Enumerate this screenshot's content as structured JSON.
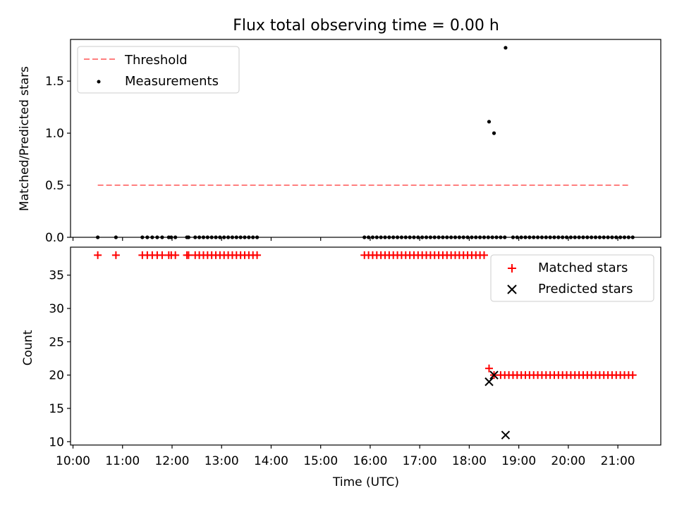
{
  "figure": {
    "title": "Flux total observing time = 0.00 h",
    "xlabel": "Time (UTC)"
  },
  "chart_data": [
    {
      "type": "scatter",
      "ylabel": "Matched/Predicted stars",
      "xlim": [
        "09:57",
        "21:52"
      ],
      "ylim": [
        0,
        1.9
      ],
      "yticks": [
        0.0,
        0.5,
        1.0,
        1.5
      ],
      "ytick_labels": [
        "0.0",
        "0.5",
        "1.0",
        "1.5"
      ],
      "legend_position": "upper-left",
      "series": [
        {
          "name": "Threshold",
          "kind": "dashed-line",
          "color": "#ff7f7f",
          "x": [
            "10:30",
            "21:15"
          ],
          "y": [
            0.5,
            0.5
          ]
        },
        {
          "name": "Measurements",
          "kind": "dots",
          "color": "#000000",
          "x": [
            "10:30",
            "10:52",
            "11:24",
            "11:30",
            "11:36",
            "11:42",
            "11:48",
            "11:56",
            "11:59",
            "12:04",
            "12:18",
            "12:20",
            "12:28",
            "12:33",
            "12:38",
            "12:43",
            "12:48",
            "12:53",
            "12:58",
            "13:03",
            "13:08",
            "13:13",
            "13:18",
            "13:23",
            "13:28",
            "13:33",
            "13:38",
            "13:43",
            "15:53",
            "15:58",
            "16:03",
            "16:08",
            "16:13",
            "16:18",
            "16:23",
            "16:28",
            "16:33",
            "16:38",
            "16:43",
            "16:48",
            "16:53",
            "16:58",
            "17:03",
            "17:08",
            "17:13",
            "17:18",
            "17:23",
            "17:28",
            "17:33",
            "17:38",
            "17:43",
            "17:48",
            "17:53",
            "17:58",
            "18:03",
            "18:08",
            "18:13",
            "18:18",
            "18:23",
            "18:28",
            "18:33",
            "18:38",
            "18:43",
            "18:53",
            "18:58",
            "19:03",
            "19:08",
            "19:13",
            "19:18",
            "19:23",
            "19:28",
            "19:33",
            "19:38",
            "19:43",
            "19:48",
            "19:53",
            "19:58",
            "20:03",
            "20:08",
            "20:13",
            "20:18",
            "20:23",
            "20:28",
            "20:33",
            "20:38",
            "20:43",
            "20:48",
            "20:53",
            "20:58",
            "21:03",
            "21:08",
            "21:13",
            "21:18",
            "18:24",
            "18:30",
            "18:44"
          ],
          "y": [
            0,
            0,
            0,
            0,
            0,
            0,
            0,
            0,
            0,
            0,
            0,
            0,
            0,
            0,
            0,
            0,
            0,
            0,
            0,
            0,
            0,
            0,
            0,
            0,
            0,
            0,
            0,
            0,
            0,
            0,
            0,
            0,
            0,
            0,
            0,
            0,
            0,
            0,
            0,
            0,
            0,
            0,
            0,
            0,
            0,
            0,
            0,
            0,
            0,
            0,
            0,
            0,
            0,
            0,
            0,
            0,
            0,
            0,
            0,
            0,
            0,
            0,
            0,
            0,
            0,
            0,
            0,
            0,
            0,
            0,
            0,
            0,
            0,
            0,
            0,
            0,
            0,
            0,
            0,
            0,
            0,
            0,
            0,
            0,
            0,
            0,
            0,
            0,
            0,
            0,
            0,
            0,
            0,
            1.11,
            1.0,
            1.82
          ]
        }
      ]
    },
    {
      "type": "scatter",
      "ylabel": "Count",
      "xlim": [
        "09:57",
        "21:52"
      ],
      "ylim": [
        9.5,
        39.2
      ],
      "yticks": [
        10,
        15,
        20,
        25,
        30,
        35
      ],
      "ytick_labels": [
        "10",
        "15",
        "20",
        "25",
        "30",
        "35"
      ],
      "xtick_labels": [
        "10:00",
        "11:00",
        "12:00",
        "13:00",
        "14:00",
        "15:00",
        "16:00",
        "17:00",
        "18:00",
        "19:00",
        "20:00",
        "21:00"
      ],
      "legend_position": "upper-right",
      "series": [
        {
          "name": "Matched stars",
          "kind": "plus",
          "color": "#ff0000",
          "x": [
            "10:30",
            "10:52",
            "11:24",
            "11:30",
            "11:36",
            "11:42",
            "11:48",
            "11:56",
            "11:59",
            "12:04",
            "12:18",
            "12:20",
            "12:28",
            "12:33",
            "12:38",
            "12:43",
            "12:48",
            "12:53",
            "12:58",
            "13:03",
            "13:08",
            "13:13",
            "13:18",
            "13:23",
            "13:28",
            "13:33",
            "13:38",
            "13:43",
            "15:53",
            "15:58",
            "16:03",
            "16:08",
            "16:13",
            "16:18",
            "16:23",
            "16:28",
            "16:33",
            "16:38",
            "16:43",
            "16:48",
            "16:53",
            "16:58",
            "17:03",
            "17:08",
            "17:13",
            "17:18",
            "17:23",
            "17:28",
            "17:33",
            "17:38",
            "17:43",
            "17:48",
            "17:53",
            "17:58",
            "18:03",
            "18:08",
            "18:13",
            "18:18",
            "18:24",
            "18:30",
            "18:38",
            "18:43",
            "18:48",
            "18:53",
            "18:58",
            "19:03",
            "19:08",
            "19:13",
            "19:18",
            "19:23",
            "19:28",
            "19:33",
            "19:38",
            "19:43",
            "19:48",
            "19:53",
            "19:58",
            "20:03",
            "20:08",
            "20:13",
            "20:18",
            "20:23",
            "20:28",
            "20:33",
            "20:38",
            "20:43",
            "20:48",
            "20:53",
            "20:58",
            "21:03",
            "21:08",
            "21:13",
            "21:18"
          ],
          "y": [
            38,
            38,
            38,
            38,
            38,
            38,
            38,
            38,
            38,
            38,
            38,
            38,
            38,
            38,
            38,
            38,
            38,
            38,
            38,
            38,
            38,
            38,
            38,
            38,
            38,
            38,
            38,
            38,
            38,
            38,
            38,
            38,
            38,
            38,
            38,
            38,
            38,
            38,
            38,
            38,
            38,
            38,
            38,
            38,
            38,
            38,
            38,
            38,
            38,
            38,
            38,
            38,
            38,
            38,
            38,
            38,
            38,
            38,
            21,
            20,
            20,
            20,
            20,
            20,
            20,
            20,
            20,
            20,
            20,
            20,
            20,
            20,
            20,
            20,
            20,
            20,
            20,
            20,
            20,
            20,
            20,
            20,
            20,
            20,
            20,
            20,
            20,
            20,
            20,
            20,
            20,
            20,
            20
          ]
        },
        {
          "name": "Predicted stars",
          "kind": "x",
          "color": "#000000",
          "x": [
            "18:24",
            "18:30",
            "18:44"
          ],
          "y": [
            19,
            20,
            11
          ]
        }
      ]
    }
  ]
}
